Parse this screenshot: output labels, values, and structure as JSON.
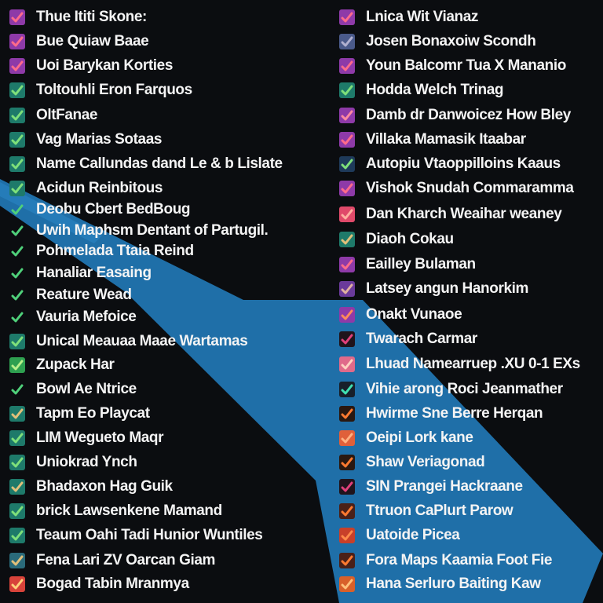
{
  "colors": {
    "background": "#0b0d10",
    "accent_band": "#1f6fa8",
    "text": "#f4f4f4"
  },
  "left_column": {
    "items": [
      {
        "label": "Thue Ititi Skone:",
        "box": "#8e3aa8",
        "check": "#ff6b8a"
      },
      {
        "label": "Bue Quiaw Baae",
        "box": "#8e3aa8",
        "check": "#ff6b8a"
      },
      {
        "label": "Uoi Barykan Korties",
        "box": "#8e3aa8",
        "check": "#ff6b8a"
      },
      {
        "label": "Toltouhli Eron Farquos",
        "box": "#1e7a6a",
        "check": "#7ee07a"
      },
      {
        "label": "OltFanae",
        "box": "#1e7a6a",
        "check": "#7ee07a"
      },
      {
        "label": "Vag Marias Sotaas",
        "box": "#1e7a6a",
        "check": "#7ee07a"
      },
      {
        "label": "Name Callundas dand Le & b Lislate",
        "box": "#1e7a6a",
        "check": "#7ee07a"
      },
      {
        "label": "Acidun Reinbitous",
        "box": "#1e7a6a",
        "check": "#7ee07a"
      },
      {
        "label": "Deobu Cbert BedBoug",
        "box": "transparent",
        "check": "#4fd07a"
      },
      {
        "label": "Uwih Maphsm Dentant of Partugil.",
        "box": "transparent",
        "check": "#4fd07a"
      },
      {
        "label": "Pohmelada Ttaia Reind",
        "box": "transparent",
        "check": "#4fd07a"
      },
      {
        "label": "Hanaliar Easaing",
        "box": "transparent",
        "check": "#4fd07a"
      },
      {
        "label": "Reature Wead",
        "box": "transparent",
        "check": "#4fd07a"
      },
      {
        "label": "Vauria Mefoice",
        "box": "transparent",
        "check": "#4fd07a"
      },
      {
        "label": "Unical Meauaa Maae Wartamas",
        "box": "#1e7a6a",
        "check": "#7ee07a"
      },
      {
        "label": "Zupack Har",
        "box": "#2ea050",
        "check": "#b8f08a"
      },
      {
        "label": "Bowl Ae Ntrice",
        "box": "transparent",
        "check": "#4fd07a"
      },
      {
        "label": "Tapm Eo Playcat",
        "box": "#1e7a6a",
        "check": "#e0c07a"
      },
      {
        "label": "LIM Wegueto Maqr",
        "box": "#1e7a6a",
        "check": "#7ee07a"
      },
      {
        "label": "Uniokrad Ynch",
        "box": "#1e7a6a",
        "check": "#7ee07a"
      },
      {
        "label": "Bhadaxon Hag Guik",
        "box": "#1e7a6a",
        "check": "#e0c07a"
      },
      {
        "label": "brick Lawsenkene Mamand",
        "box": "#1e7a6a",
        "check": "#7ee07a"
      },
      {
        "label": "Teaum Oahi Tadi Hunior Wuntiles",
        "box": "#1e7a6a",
        "check": "#7ee07a"
      },
      {
        "label": "Fena Lari ZV Oarcan Giam",
        "box": "#2a6a7a",
        "check": "#e0c07a"
      },
      {
        "label": "Bogad Tabin Mranmya",
        "box": "#d8433a",
        "check": "#ffd07a"
      }
    ]
  },
  "right_column": {
    "items": [
      {
        "label": "Lnica Wit Vianaz",
        "box": "#8e3aa8",
        "check": "#ff6b8a"
      },
      {
        "label": "Josen Bonaxoiw Scondh",
        "box": "#4a5a8a",
        "check": "#b0b0d0"
      },
      {
        "label": "Youn Balcomr Tua X Mananio",
        "box": "#8e3aa8",
        "check": "#ff6b8a"
      },
      {
        "label": "Hodda Welch Trinag",
        "box": "#1e7a6a",
        "check": "#7ee07a"
      },
      {
        "label": "Damb dr Danwoicez How Bley",
        "box": "#8e3aa8",
        "check": "#ff8aa0"
      },
      {
        "label": "Villaka Mamasik Itaabar",
        "box": "#8e3aa8",
        "check": "#ff6b8a"
      },
      {
        "label": "Autopiu Vtaoppilloins Kaaus",
        "box": "#1e3a5a",
        "check": "#7ee07a"
      },
      {
        "label": "Vishok Snudah Commaramma",
        "box": "#8e3aa8",
        "check": "#ff6b8a"
      },
      {
        "label": "Dan Kharch Weaihar weaney",
        "box": "#e04a6a",
        "check": "#ffb0a0"
      },
      {
        "label": "Diaoh Cokau",
        "box": "#1e7a6a",
        "check": "#e0c07a"
      },
      {
        "label": "Eailley Bulaman",
        "box": "#8e3aa8",
        "check": "#ff6b8a"
      },
      {
        "label": "Latsey angun Hanorkim",
        "box": "#6a3a9a",
        "check": "#e0b0a0"
      },
      {
        "label": "Onakt Vunaoe",
        "box": "#8e3aa8",
        "check": "#ff8a5a"
      },
      {
        "label": "Twarach Carmar",
        "box": "#20141c",
        "check": "#e0407a"
      },
      {
        "label": "Lhuad Namearruep .XU 0-1 EXs",
        "box": "#e06a8a",
        "check": "#ffd0c0"
      },
      {
        "label": "Vihie arong Roci Jeanmather",
        "box": "#18202a",
        "check": "#40e0b0"
      },
      {
        "label": "Hwirme Sne Berre Herqan",
        "box": "#2a1810",
        "check": "#ff7a30"
      },
      {
        "label": "Oeipi Lork kane",
        "box": "#e0603a",
        "check": "#ffb080"
      },
      {
        "label": "Shaw Veriagonad",
        "box": "#2a1810",
        "check": "#ff7a30"
      },
      {
        "label": "SIN Prangei Hackraane",
        "box": "#20141c",
        "check": "#e0407a"
      },
      {
        "label": "Ttruon CaPlurt Parow",
        "box": "#4a2018",
        "check": "#ff7a30"
      },
      {
        "label": "Uatoide Picea",
        "box": "#c8402a",
        "check": "#ff8a4a"
      },
      {
        "label": "Fora Maps Kaamia Foot Fie",
        "box": "#4a2018",
        "check": "#ff7a30"
      },
      {
        "label": "Hana Serluro Baiting Kaw",
        "box": "#d8602a",
        "check": "#ffc07a"
      }
    ]
  }
}
